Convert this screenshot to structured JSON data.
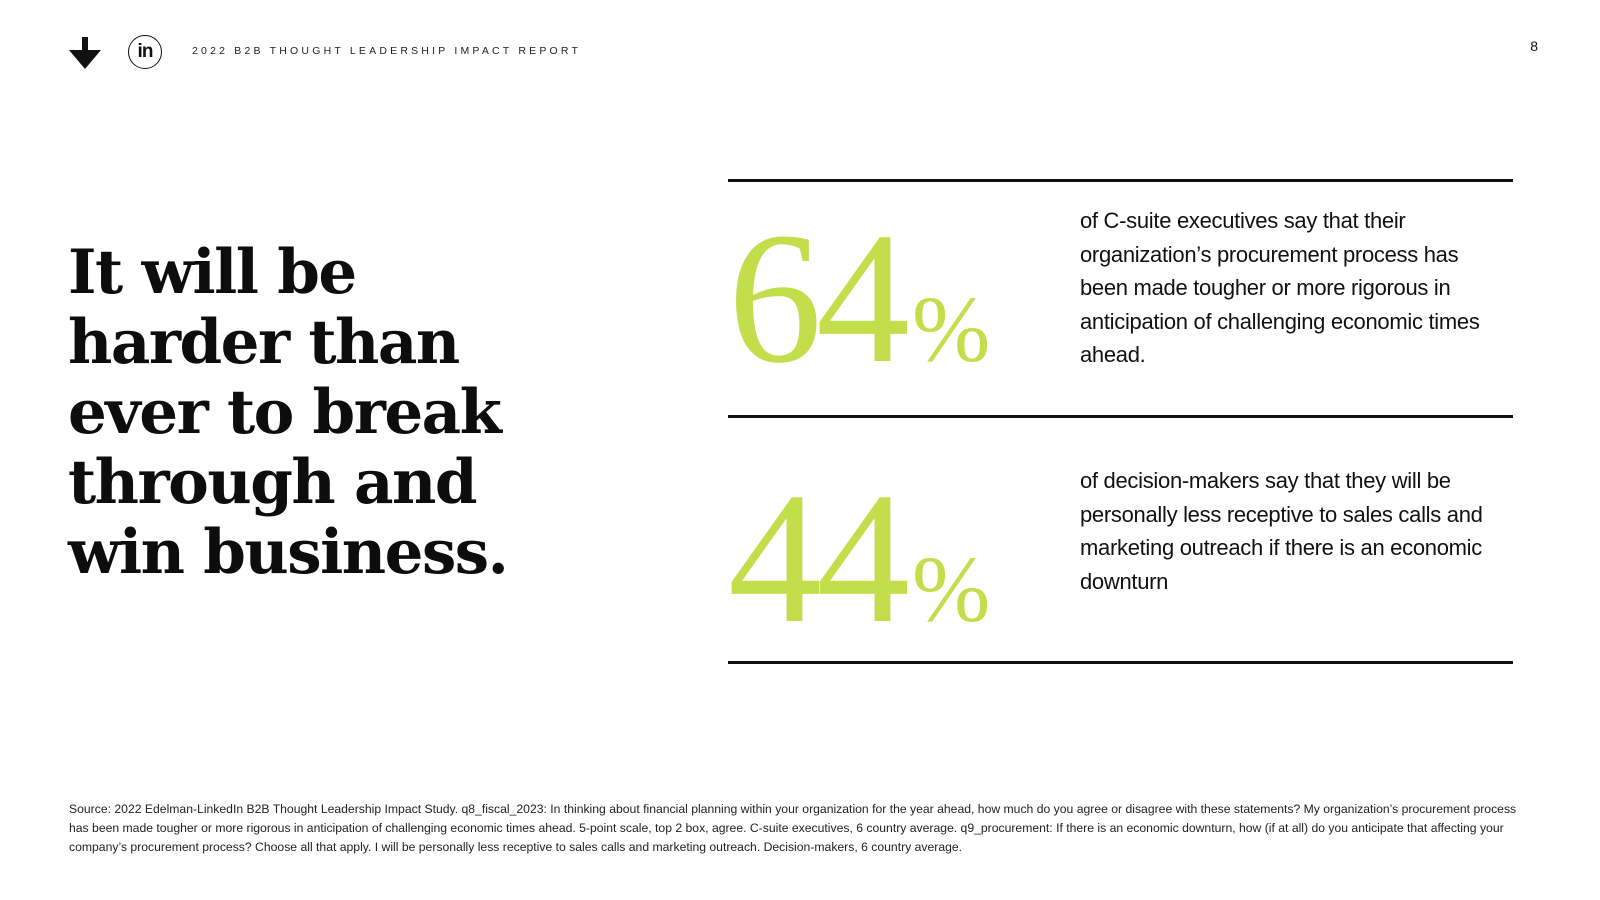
{
  "header": {
    "logo_icon": "arrow-down-right-icon",
    "social_icon": "linkedin-icon",
    "linkedin_glyph": "in",
    "report_title": "2022 B2B THOUGHT LEADERSHIP IMPACT REPORT",
    "page_number": "8"
  },
  "headline": "It will be harder than ever to break through and win business.",
  "stats": [
    {
      "value": "64",
      "unit": "%",
      "text": "of C-suite executives say that their organization’s procurement process has been made tougher or more rigorous in anticipation of challenging economic times ahead."
    },
    {
      "value": "44",
      "unit": "%",
      "text": "of decision-makers say that they will be personally less receptive to sales calls and marketing outreach if there is an economic downturn"
    }
  ],
  "source": "Source: 2022 Edelman-LinkedIn B2B Thought Leadership Impact Study. q8_fiscal_2023: In thinking about financial planning within your organization for the year ahead, how much do you agree or disagree with these statements? My organization’s procurement process has been made tougher or more rigorous in anticipation of challenging economic times ahead.  5-point scale, top 2 box, agree. C-suite executives, 6 country average. q9_procurement: If there is an economic downturn, how (if at all) do you anticipate that affecting your company’s procurement process? Choose all that apply. I will be personally less receptive to sales calls and marketing outreach. Decision-makers, 6 country average.",
  "colors": {
    "accent": "#c4dd4a",
    "text": "#111111",
    "background": "#ffffff"
  }
}
